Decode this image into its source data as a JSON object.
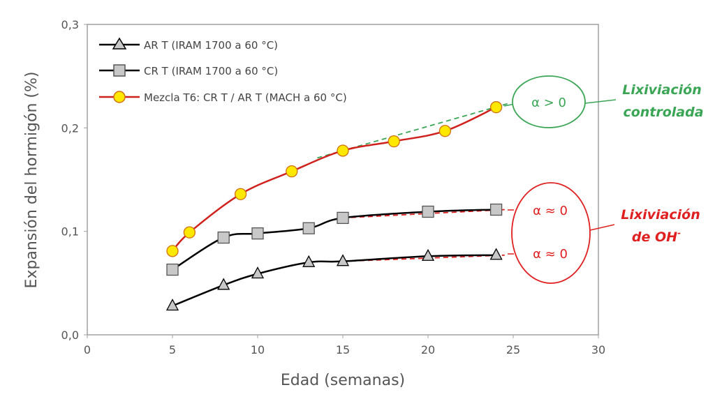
{
  "chart_data": {
    "type": "line",
    "xlabel": "Edad (semanas)",
    "ylabel": "Expansión del hormigón (%)",
    "xlim": [
      0,
      30
    ],
    "ylim": [
      0,
      0.3
    ],
    "xticks": [
      0,
      5,
      10,
      15,
      20,
      25,
      30
    ],
    "xtick_labels": [
      "0",
      "5",
      "10",
      "15",
      "20",
      "25",
      "30"
    ],
    "yticks": [
      0,
      0.1,
      0.2,
      0.3
    ],
    "ytick_labels": [
      "0,0",
      "0,1",
      "0,2",
      "0,3"
    ],
    "grid": false,
    "legend_placement": "top-left",
    "series": [
      {
        "name": "AR T (IRAM 1700 a 60 °C)",
        "marker": "triangle",
        "line_color": "#000000",
        "marker_fill": "#c8c8c8",
        "x": [
          5,
          8,
          10,
          13,
          15,
          20,
          24
        ],
        "y": [
          0.028,
          0.048,
          0.059,
          0.07,
          0.071,
          0.076,
          0.077
        ]
      },
      {
        "name": "CR T (IRAM 1700 a 60 °C)",
        "marker": "square",
        "line_color": "#000000",
        "marker_fill": "#c8c8c8",
        "x": [
          5,
          8,
          10,
          13,
          15,
          20,
          24
        ],
        "y": [
          0.063,
          0.094,
          0.098,
          0.103,
          0.113,
          0.119,
          0.121
        ]
      },
      {
        "name": "Mezcla T6: CR T / AR T (MACH a 60 °C)",
        "marker": "circle",
        "line_color": "#d0201c",
        "marker_fill": "#ffe800",
        "x": [
          5,
          6,
          9,
          12,
          15,
          18,
          21,
          24
        ],
        "y": [
          0.081,
          0.099,
          0.136,
          0.158,
          0.178,
          0.187,
          0.197,
          0.22
        ]
      }
    ],
    "trend_lines": [
      {
        "color": "#3aa655",
        "x": [
          13.5,
          24.8
        ],
        "y": [
          0.171,
          0.224
        ]
      },
      {
        "color": "#e02020",
        "x": [
          15,
          24.5
        ],
        "y": [
          0.113,
          0.121
        ]
      },
      {
        "color": "#e02020",
        "x": [
          15,
          24.5
        ],
        "y": [
          0.071,
          0.077
        ]
      }
    ],
    "annotations": {
      "green_ellipse_text": "α > 0",
      "green_label_line1": "Lixiviación",
      "green_label_line2": "controlada",
      "red_ellipse_text_top": "α ≈ 0",
      "red_ellipse_text_bottom": "α ≈ 0",
      "red_label_line1": "Lixiviación",
      "red_label_line2": "de OH",
      "red_label_superscript": "-"
    },
    "colors": {
      "green": "#3aa655",
      "red": "#e02020",
      "axis": "#a0a0a0",
      "text": "#555555"
    }
  }
}
